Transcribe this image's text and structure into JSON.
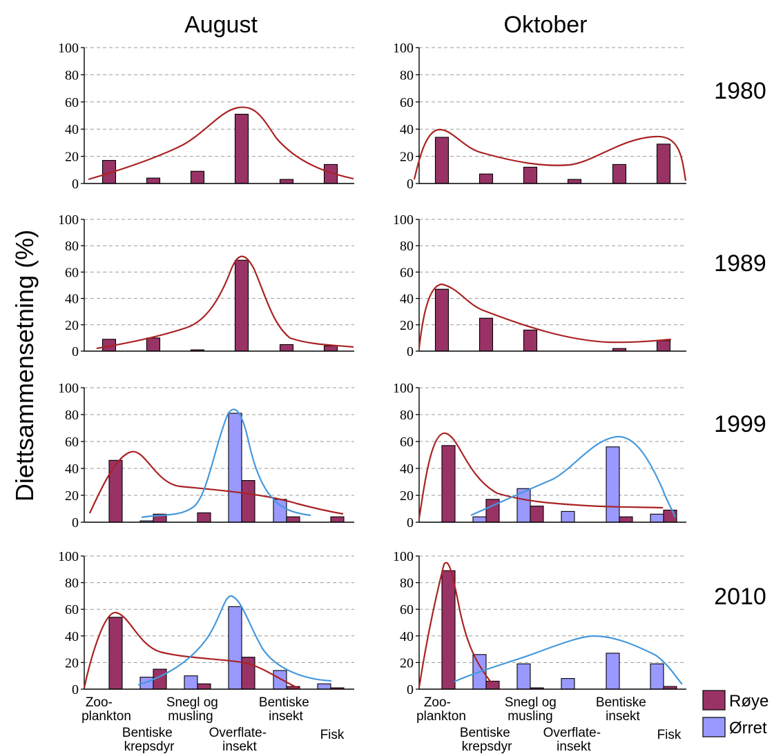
{
  "figure": {
    "y_axis_label": "Diettsammensetning (%)",
    "column_titles": [
      "August",
      "Oktober"
    ],
    "row_labels": [
      "1980",
      "1989",
      "1999",
      "2010"
    ],
    "category_label_lines": [
      [
        "Zoo-",
        "plankton"
      ],
      [
        "Bentiske",
        "krepsdyr"
      ],
      [
        "Snegl og",
        "musling"
      ],
      [
        "Overflate-",
        "insekt"
      ],
      [
        "Bentiske",
        "insekt"
      ],
      [
        "Fisk"
      ]
    ]
  },
  "legend": {
    "placement": "bottom-right",
    "items": [
      {
        "label": "Røye",
        "color": "#993366"
      },
      {
        "label": "Ørret",
        "color": "#9999ff"
      }
    ]
  },
  "colors": {
    "roye_bar": "#993366",
    "orret_bar": "#9999ff",
    "roye_curve": "#aa2222",
    "orret_curve": "#4499dd",
    "grid": "#999999"
  },
  "chart_data": [
    {
      "type": "bar",
      "month": "August",
      "year": "1980",
      "categories": [
        "Zooplankton",
        "Bentiske krepsdyr",
        "Snegl og musling",
        "Overflateinsekt",
        "Bentiske insekt",
        "Fisk"
      ],
      "ylim": [
        0,
        100
      ],
      "yticks": [
        0,
        20,
        40,
        60,
        80,
        100
      ],
      "grid": true,
      "series": [
        {
          "name": "Røye",
          "values": [
            17,
            4,
            9,
            51,
            3,
            14
          ]
        }
      ]
    },
    {
      "type": "bar",
      "month": "Oktober",
      "year": "1980",
      "categories": [
        "Zooplankton",
        "Bentiske krepsdyr",
        "Snegl og musling",
        "Overflateinsekt",
        "Bentiske insekt",
        "Fisk"
      ],
      "ylim": [
        0,
        100
      ],
      "yticks": [
        0,
        20,
        40,
        60,
        80,
        100
      ],
      "grid": true,
      "series": [
        {
          "name": "Røye",
          "values": [
            34,
            7,
            12,
            3,
            14,
            29
          ]
        }
      ]
    },
    {
      "type": "bar",
      "month": "August",
      "year": "1989",
      "categories": [
        "Zooplankton",
        "Bentiske krepsdyr",
        "Snegl og musling",
        "Overflateinsekt",
        "Bentiske insekt",
        "Fisk"
      ],
      "ylim": [
        0,
        100
      ],
      "yticks": [
        0,
        20,
        40,
        60,
        80,
        100
      ],
      "grid": true,
      "series": [
        {
          "name": "Røye",
          "values": [
            9,
            10,
            1,
            69,
            5,
            4
          ]
        }
      ]
    },
    {
      "type": "bar",
      "month": "Oktober",
      "year": "1989",
      "categories": [
        "Zooplankton",
        "Bentiske krepsdyr",
        "Snegl og musling",
        "Overflateinsekt",
        "Bentiske insekt",
        "Fisk"
      ],
      "ylim": [
        0,
        100
      ],
      "yticks": [
        0,
        20,
        40,
        60,
        80,
        100
      ],
      "grid": true,
      "series": [
        {
          "name": "Røye",
          "values": [
            47,
            25,
            16,
            0,
            2,
            8
          ]
        }
      ]
    },
    {
      "type": "bar",
      "month": "August",
      "year": "1999",
      "categories": [
        "Zooplankton",
        "Bentiske krepsdyr",
        "Snegl og musling",
        "Overflateinsekt",
        "Bentiske insekt",
        "Fisk"
      ],
      "ylim": [
        0,
        100
      ],
      "yticks": [
        0,
        20,
        40,
        60,
        80,
        100
      ],
      "grid": true,
      "series": [
        {
          "name": "Ørret",
          "values": [
            0,
            1,
            0,
            81,
            17,
            0
          ]
        },
        {
          "name": "Røye",
          "values": [
            46,
            6,
            7,
            31,
            4,
            4
          ]
        }
      ]
    },
    {
      "type": "bar",
      "month": "Oktober",
      "year": "1999",
      "categories": [
        "Zooplankton",
        "Bentiske krepsdyr",
        "Snegl og musling",
        "Overflateinsekt",
        "Bentiske insekt",
        "Fisk"
      ],
      "ylim": [
        0,
        100
      ],
      "yticks": [
        0,
        20,
        40,
        60,
        80,
        100
      ],
      "grid": true,
      "series": [
        {
          "name": "Ørret",
          "values": [
            0,
            4,
            25,
            8,
            56,
            6
          ]
        },
        {
          "name": "Røye",
          "values": [
            57,
            17,
            12,
            0,
            4,
            9
          ]
        }
      ]
    },
    {
      "type": "bar",
      "month": "August",
      "year": "2010",
      "categories": [
        "Zooplankton",
        "Bentiske krepsdyr",
        "Snegl og musling",
        "Overflateinsekt",
        "Bentiske insekt",
        "Fisk"
      ],
      "ylim": [
        0,
        100
      ],
      "yticks": [
        0,
        20,
        40,
        60,
        80,
        100
      ],
      "grid": true,
      "series": [
        {
          "name": "Ørret",
          "values": [
            0,
            9,
            10,
            62,
            14,
            4
          ]
        },
        {
          "name": "Røye",
          "values": [
            54,
            15,
            4,
            24,
            2,
            1
          ]
        }
      ]
    },
    {
      "type": "bar",
      "month": "Oktober",
      "year": "2010",
      "categories": [
        "Zooplankton",
        "Bentiske krepsdyr",
        "Snegl og musling",
        "Overflateinsekt",
        "Bentiske insekt",
        "Fisk"
      ],
      "ylim": [
        0,
        100
      ],
      "yticks": [
        0,
        20,
        40,
        60,
        80,
        100
      ],
      "grid": true,
      "series": [
        {
          "name": "Ørret",
          "values": [
            0,
            26,
            19,
            8,
            27,
            19
          ]
        },
        {
          "name": "Røye",
          "values": [
            89,
            6,
            1,
            0,
            0,
            2
          ]
        }
      ]
    }
  ]
}
